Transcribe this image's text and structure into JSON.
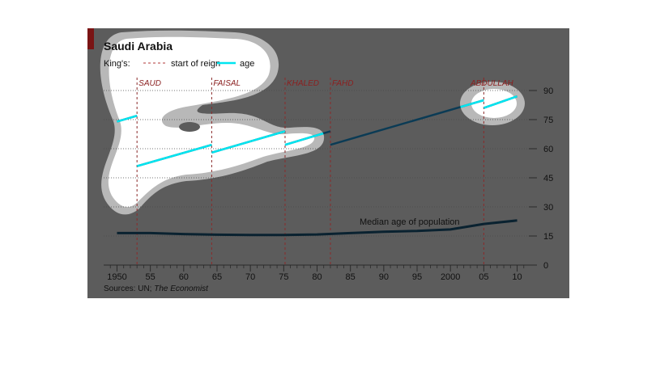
{
  "colors": {
    "page_background": "#ffffff",
    "panel_background": "#5c5c5c",
    "accent_bar": "#7a1414",
    "blob_fill": "#ffffff",
    "blob_halo": "#b8b8b8",
    "blob_hole": "#5c5c5c",
    "age_bright": "#00e5f0",
    "age_dark": "#0b3b55",
    "median_line": "#0a2230",
    "reign_line": "#8b2a2a",
    "king_label": "#8b2020",
    "text_dark": "#111111",
    "tick_line": "#2a2a2a"
  },
  "chart_data": {
    "type": "line",
    "title": "Saudi Arabia",
    "legend": {
      "prefix": "King's:",
      "items": [
        {
          "label": "start of reign",
          "style": "dashed",
          "color": "#b03a3a"
        },
        {
          "label": "age",
          "style": "solid",
          "color": "#00e5f0"
        }
      ]
    },
    "xlim": [
      1948,
      2012
    ],
    "ylim": [
      0,
      100
    ],
    "x_ticks": [
      {
        "value": 1950,
        "label": "1950"
      },
      {
        "value": 1955,
        "label": "55"
      },
      {
        "value": 1960,
        "label": "60"
      },
      {
        "value": 1965,
        "label": "65"
      },
      {
        "value": 1970,
        "label": "70"
      },
      {
        "value": 1975,
        "label": "75"
      },
      {
        "value": 1980,
        "label": "80"
      },
      {
        "value": 1985,
        "label": "85"
      },
      {
        "value": 1990,
        "label": "90"
      },
      {
        "value": 1995,
        "label": "95"
      },
      {
        "value": 2000,
        "label": "2000"
      },
      {
        "value": 2005,
        "label": "05"
      },
      {
        "value": 2010,
        "label": "10"
      }
    ],
    "y_ticks": [
      {
        "value": 0,
        "label": "0"
      },
      {
        "value": 15,
        "label": "15"
      },
      {
        "value": 30,
        "label": "30"
      },
      {
        "value": 45,
        "label": "45"
      },
      {
        "value": 60,
        "label": "60"
      },
      {
        "value": 75,
        "label": "75"
      },
      {
        "value": 90,
        "label": "90"
      }
    ],
    "y_axis_side": "right",
    "grid": "horizontal",
    "kings": [
      {
        "name": "SAUD",
        "reign_start": 1953.0
      },
      {
        "name": "FAISAL",
        "reign_start": 1964.2
      },
      {
        "name": "KHALED",
        "reign_start": 1975.2
      },
      {
        "name": "FAHD",
        "reign_start": 1982.0
      },
      {
        "name": "ABDULLAH",
        "reign_start": 2005.0
      }
    ],
    "age_series": [
      {
        "king": "pre-SAUD",
        "x": [
          1950,
          1953
        ],
        "y": [
          74,
          77
        ]
      },
      {
        "king": "SAUD",
        "x": [
          1953,
          1964.2
        ],
        "y": [
          51,
          62
        ]
      },
      {
        "king": "FAISAL",
        "x": [
          1964.2,
          1975.2
        ],
        "y": [
          58,
          69
        ]
      },
      {
        "king": "KHALED",
        "x": [
          1975.2,
          1982
        ],
        "y": [
          62,
          69
        ]
      },
      {
        "king": "FAHD",
        "x": [
          1982,
          2005
        ],
        "y": [
          62,
          85
        ]
      },
      {
        "king": "ABDULLAH",
        "x": [
          2005,
          2010
        ],
        "y": [
          81,
          87
        ]
      }
    ],
    "median_age": {
      "label": "Median age of population",
      "x": [
        1950,
        1955,
        1960,
        1965,
        1970,
        1975,
        1980,
        1985,
        1990,
        1995,
        2000,
        2005,
        2010
      ],
      "y": [
        16.5,
        16.5,
        16.0,
        15.7,
        15.5,
        15.5,
        15.8,
        16.5,
        17.2,
        17.6,
        18.4,
        21.2,
        23.0
      ]
    },
    "source": {
      "prefix": "Sources: UN; ",
      "italic": "The Economist"
    }
  }
}
